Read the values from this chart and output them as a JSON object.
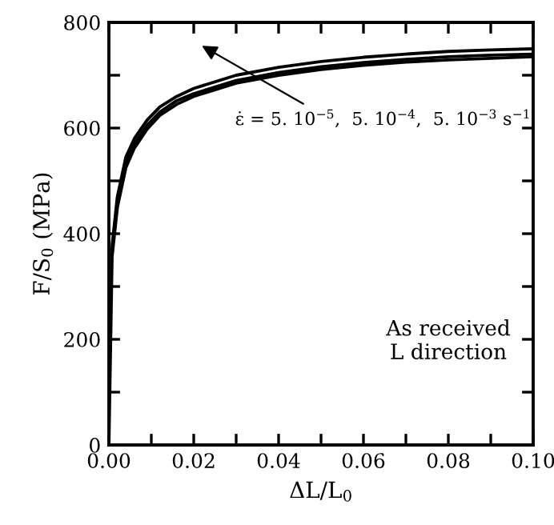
{
  "chart_data": {
    "type": "line",
    "xlabel": "ΔL/L$_{0}$",
    "ylabel": "F/S$_{0}$ (MPa)",
    "xlim": [
      0,
      0.1
    ],
    "ylim": [
      0,
      800
    ],
    "xticks": [
      {
        "value": 0,
        "label": "0.00"
      },
      {
        "value": 0.01,
        "label": null
      },
      {
        "value": 0.02,
        "label": "0.02"
      },
      {
        "value": 0.03,
        "label": null
      },
      {
        "value": 0.04,
        "label": "0.04"
      },
      {
        "value": 0.05,
        "label": null
      },
      {
        "value": 0.06,
        "label": "0.06"
      },
      {
        "value": 0.07,
        "label": null
      },
      {
        "value": 0.08,
        "label": "0.08"
      },
      {
        "value": 0.09,
        "label": null
      },
      {
        "value": 0.1,
        "label": "0.10"
      }
    ],
    "yticks": [
      0,
      {
        "value": 100,
        "label": null
      },
      200,
      {
        "value": 300,
        "label": null
      },
      400,
      {
        "value": 500,
        "label": null
      },
      600,
      {
        "value": 700,
        "label": null
      },
      800
    ],
    "x": [
      0,
      0.0008,
      0.002,
      0.004,
      0.006,
      0.009,
      0.012,
      0.016,
      0.02,
      0.03,
      0.04,
      0.05,
      0.06,
      0.07,
      0.08,
      0.09,
      0.1
    ],
    "series": [
      {
        "color": "#000000",
        "values": [
          0,
          380,
          470,
          545,
          580,
          615,
          640,
          660,
          675,
          700,
          715,
          726,
          734,
          740,
          745,
          748,
          750
        ]
      },
      {
        "color": "#000000",
        "values": [
          null,
          370,
          460,
          535,
          570,
          605,
          630,
          652,
          665,
          690,
          705,
          716,
          724,
          730,
          735,
          738,
          740
        ]
      },
      {
        "color": "#000000",
        "values": [
          null,
          360,
          450,
          525,
          562,
          598,
          624,
          645,
          660,
          685,
          700,
          711,
          719,
          725,
          729,
          732,
          735
        ]
      }
    ],
    "grid": false,
    "marker": "none",
    "line_style": "solid",
    "annotations": [
      "ε̇ = 5. 10$^{−5}$,  5. 10$^{−4}$,  5. 10$^{−3}$ s$^{−1}$",
      "As received\nL direction"
    ]
  }
}
